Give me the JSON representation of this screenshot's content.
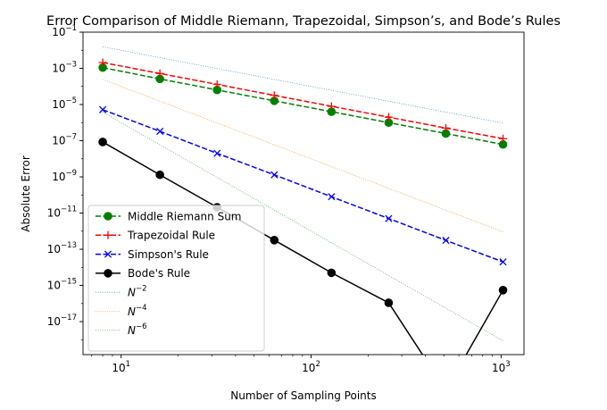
{
  "chart_data": {
    "type": "line",
    "title": "Error Comparison of Middle Riemann, Trapezoidal, Simpson’s, and Bode’s Rules",
    "xlabel": "Number of Sampling Points",
    "ylabel": "Absolute Error",
    "xscale": "log",
    "yscale": "log",
    "xlim": [
      6.3,
      1320
    ],
    "ylim": [
      1.5e-19,
      0.1
    ],
    "x_ticks": [
      {
        "value": 10,
        "base": "10",
        "exp": "1"
      },
      {
        "value": 100,
        "base": "10",
        "exp": "2"
      },
      {
        "value": 1000,
        "base": "10",
        "exp": "3"
      }
    ],
    "y_ticks": [
      {
        "value": 1e-17,
        "base": "10",
        "exp": "−17"
      },
      {
        "value": 1e-15,
        "base": "10",
        "exp": "−15"
      },
      {
        "value": 1e-13,
        "base": "10",
        "exp": "−13"
      },
      {
        "value": 1e-11,
        "base": "10",
        "exp": "−11"
      },
      {
        "value": 1e-09,
        "base": "10",
        "exp": "−9"
      },
      {
        "value": 1e-07,
        "base": "10",
        "exp": "−7"
      },
      {
        "value": 1e-05,
        "base": "10",
        "exp": "−5"
      },
      {
        "value": 0.001,
        "base": "10",
        "exp": "−3"
      },
      {
        "value": 0.1,
        "base": "10",
        "exp": "−1"
      }
    ],
    "grid": false,
    "legend_position": "lower-left",
    "series": [
      {
        "name": "Middle Riemann Sum",
        "color": "#008000",
        "linestyle": "dashed",
        "marker": "circle",
        "x": [
          8,
          16,
          32,
          64,
          128,
          256,
          512,
          1024
        ],
        "y": [
          0.0011,
          0.00026,
          6.4e-05,
          1.6e-05,
          4e-06,
          1e-06,
          2.5e-07,
          6.2e-08
        ]
      },
      {
        "name": "Trapezoidal Rule",
        "color": "#ff0000",
        "linestyle": "dashed",
        "marker": "plus",
        "x": [
          8,
          16,
          32,
          64,
          128,
          256,
          512,
          1024
        ],
        "y": [
          0.0021,
          0.00052,
          0.00013,
          3.2e-05,
          8e-06,
          2e-06,
          5e-07,
          1.3e-07
        ]
      },
      {
        "name": "Simpson's Rule",
        "color": "#0000ff",
        "linestyle": "dashed",
        "marker": "x",
        "x": [
          8,
          16,
          32,
          64,
          128,
          256,
          512,
          1024
        ],
        "y": [
          5.2e-06,
          3.3e-07,
          2e-08,
          1.3e-09,
          8e-11,
          5e-12,
          3.1e-13,
          2e-14
        ]
      },
      {
        "name": "Bode's Rule",
        "color": "#000000",
        "linestyle": "solid",
        "marker": "circle",
        "x": [
          8,
          16,
          32,
          64,
          128,
          256,
          512,
          1024
        ],
        "y": [
          8.5e-08,
          1.3e-09,
          2.1e-11,
          3.2e-13,
          5e-15,
          1.1e-16,
          0,
          5.5e-16
        ]
      },
      {
        "name": "N⁻²",
        "label_base": "N",
        "label_exp": "−2",
        "color": "#1f77b4",
        "linestyle": "dotted",
        "marker": "none",
        "x": [
          8,
          1024
        ],
        "y": [
          0.0156,
          9.5e-07
        ]
      },
      {
        "name": "N⁻⁴",
        "label_base": "N",
        "label_exp": "−4",
        "color": "#ff7f0e",
        "linestyle": "dotted",
        "marker": "none",
        "x": [
          8,
          1024
        ],
        "y": [
          0.000244,
          9.1e-13
        ]
      },
      {
        "name": "N⁻⁶",
        "label_base": "N",
        "label_exp": "−6",
        "color": "#2ca02c",
        "linestyle": "dotted",
        "marker": "none",
        "x": [
          8,
          1024
        ],
        "y": [
          3.8e-06,
          8.7e-19
        ]
      }
    ]
  }
}
